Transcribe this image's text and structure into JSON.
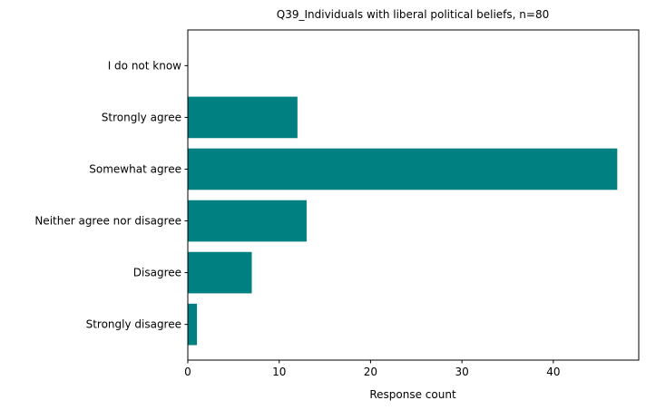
{
  "chart_data": {
    "type": "bar",
    "orientation": "horizontal",
    "title": "Q39_Individuals with liberal political beliefs, n=80",
    "xlabel": "Response count",
    "ylabel": "",
    "categories": [
      "Strongly disagree",
      "Disagree",
      "Neither agree nor disagree",
      "Somewhat agree",
      "Strongly agree",
      "I do not know"
    ],
    "values": [
      1,
      7,
      13,
      47,
      12,
      0
    ],
    "xlim": [
      0,
      49.35
    ],
    "xticks": [
      0,
      10,
      20,
      30,
      40
    ],
    "grid": false,
    "legend": "none",
    "bar_color": "#008080"
  }
}
